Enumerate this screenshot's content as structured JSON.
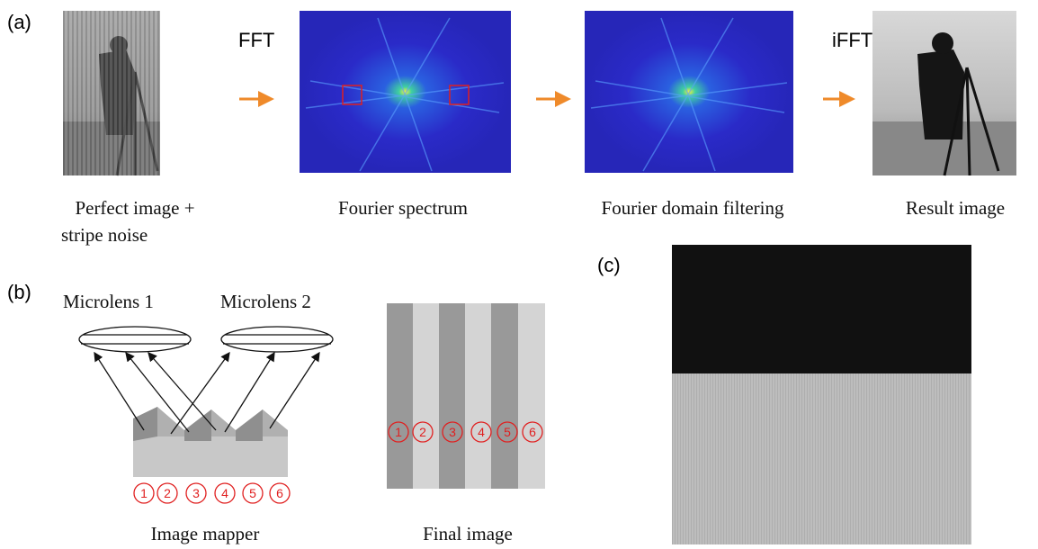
{
  "panel_a": {
    "label": "(a)",
    "fft_label": "FFT",
    "ifft_label": "iFFT",
    "captions": [
      "Perfect image +",
      "stripe noise",
      "Fourier spectrum",
      "Fourier domain filtering",
      "Result image"
    ]
  },
  "panel_b": {
    "label": "(b)",
    "lenses": [
      "Microlens 1",
      "Microlens 2"
    ],
    "mapper_numbers": [
      "1",
      "2",
      "3",
      "4",
      "5",
      "6"
    ],
    "final_numbers": [
      "1",
      "2",
      "3",
      "4",
      "5",
      "6"
    ],
    "captions": [
      "Image mapper",
      "Final image"
    ]
  },
  "panel_c": {
    "label": "(c)"
  }
}
